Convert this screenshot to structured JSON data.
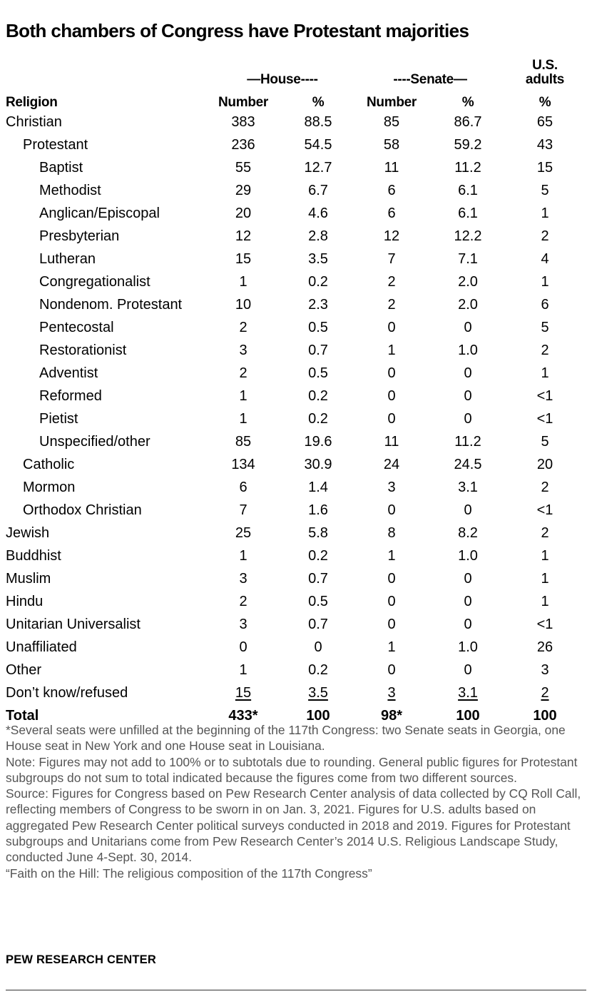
{
  "title": "Both chambers of Congress have Protestant majorities",
  "header": {
    "house": "—House----",
    "senate": "----Senate—",
    "us_adults": "U.S. adults",
    "religion": "Religion",
    "columns": [
      "Number",
      "%",
      "Number",
      "%",
      "%"
    ]
  },
  "chart_data": {
    "type": "table",
    "title": "Both chambers of Congress have Protestant majorities",
    "columns": [
      "Religion",
      "House Number",
      "House %",
      "Senate Number",
      "Senate %",
      "U.S. adults %"
    ],
    "rows": [
      {
        "label": "Christian",
        "level": 0,
        "values": [
          "383",
          "88.5",
          "85",
          "86.7",
          "65"
        ]
      },
      {
        "label": "Protestant",
        "level": 1,
        "values": [
          "236",
          "54.5",
          "58",
          "59.2",
          "43"
        ]
      },
      {
        "label": "Baptist",
        "level": 2,
        "values": [
          "55",
          "12.7",
          "11",
          "11.2",
          "15"
        ]
      },
      {
        "label": "Methodist",
        "level": 2,
        "values": [
          "29",
          "6.7",
          "6",
          "6.1",
          "5"
        ]
      },
      {
        "label": "Anglican/Episcopal",
        "level": 2,
        "values": [
          "20",
          "4.6",
          "6",
          "6.1",
          "1"
        ]
      },
      {
        "label": "Presbyterian",
        "level": 2,
        "values": [
          "12",
          "2.8",
          "12",
          "12.2",
          "2"
        ]
      },
      {
        "label": "Lutheran",
        "level": 2,
        "values": [
          "15",
          "3.5",
          "7",
          "7.1",
          "4"
        ]
      },
      {
        "label": "Congregationalist",
        "level": 2,
        "values": [
          "1",
          "0.2",
          "2",
          "2.0",
          "1"
        ]
      },
      {
        "label": "Nondenom. Protestant",
        "level": 2,
        "values": [
          "10",
          "2.3",
          "2",
          "2.0",
          "6"
        ]
      },
      {
        "label": "Pentecostal",
        "level": 2,
        "values": [
          "2",
          "0.5",
          "0",
          "0",
          "5"
        ]
      },
      {
        "label": "Restorationist",
        "level": 2,
        "values": [
          "3",
          "0.7",
          "1",
          "1.0",
          "2"
        ]
      },
      {
        "label": "Adventist",
        "level": 2,
        "values": [
          "2",
          "0.5",
          "0",
          "0",
          "1"
        ]
      },
      {
        "label": "Reformed",
        "level": 2,
        "values": [
          "1",
          "0.2",
          "0",
          "0",
          "<1"
        ]
      },
      {
        "label": "Pietist",
        "level": 2,
        "values": [
          "1",
          "0.2",
          "0",
          "0",
          "<1"
        ]
      },
      {
        "label": "Unspecified/other",
        "level": 2,
        "values": [
          "85",
          "19.6",
          "11",
          "11.2",
          "5"
        ]
      },
      {
        "label": "Catholic",
        "level": 1,
        "values": [
          "134",
          "30.9",
          "24",
          "24.5",
          "20"
        ]
      },
      {
        "label": "Mormon",
        "level": 1,
        "values": [
          "6",
          "1.4",
          "3",
          "3.1",
          "2"
        ]
      },
      {
        "label": "Orthodox Christian",
        "level": 1,
        "values": [
          "7",
          "1.6",
          "0",
          "0",
          "<1"
        ]
      },
      {
        "label": "Jewish",
        "level": 0,
        "values": [
          "25",
          "5.8",
          "8",
          "8.2",
          "2"
        ]
      },
      {
        "label": "Buddhist",
        "level": 0,
        "values": [
          "1",
          "0.2",
          "1",
          "1.0",
          "1"
        ]
      },
      {
        "label": "Muslim",
        "level": 0,
        "values": [
          "3",
          "0.7",
          "0",
          "0",
          "1"
        ]
      },
      {
        "label": "Hindu",
        "level": 0,
        "values": [
          "2",
          "0.5",
          "0",
          "0",
          "1"
        ]
      },
      {
        "label": "Unitarian Universalist",
        "level": 0,
        "values": [
          "3",
          "0.7",
          "0",
          "0",
          "<1"
        ]
      },
      {
        "label": "Unaffiliated",
        "level": 0,
        "values": [
          "0",
          "0",
          "1",
          "1.0",
          "26"
        ]
      },
      {
        "label": "Other",
        "level": 0,
        "values": [
          "1",
          "0.2",
          "0",
          "0",
          "3"
        ]
      },
      {
        "label": "Don’t know/refused",
        "level": 0,
        "underline": true,
        "values": [
          "15",
          "3.5",
          "3",
          "3.1",
          "2"
        ]
      },
      {
        "label": "Total",
        "level": 0,
        "bold": true,
        "values": [
          "433*",
          "100",
          "98*",
          "100",
          "100"
        ]
      }
    ]
  },
  "notes": [
    "*Several seats were unfilled at the beginning of the 117th Congress: two Senate seats in Georgia, one House seat in New York and one House seat in Louisiana.",
    "Note: Figures may not add to 100% or to subtotals due to rounding. General public figures for Protestant subgroups do not sum to total indicated because the figures come from two different sources.",
    "Source: Figures for Congress based on Pew Research Center analysis of data collected by CQ Roll Call, reflecting members of Congress to be sworn in on Jan. 3, 2021. Figures for U.S. adults based on aggregated Pew Research Center political surveys conducted in 2018 and 2019. Figures for Protestant subgroups and Unitarians come from Pew Research Center’s 2014 U.S. Religious Landscape Study, conducted June 4-Sept. 30, 2014.",
    "“Faith on the Hill: The religious composition of the 117th Congress”"
  ],
  "brand": "PEW RESEARCH CENTER"
}
